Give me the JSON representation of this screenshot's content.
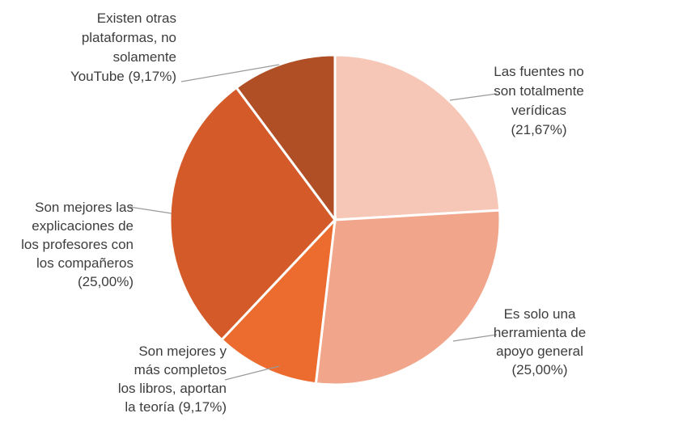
{
  "chart_data": {
    "type": "pie",
    "title": "",
    "start_angle_deg": 0,
    "direction": "clockwise",
    "series": [
      {
        "values": [
          21.67,
          25.0,
          9.17,
          25.0,
          9.17
        ],
        "colors": [
          "#f6c7b6",
          "#f1a58b",
          "#ec6b2e",
          "#d45b29",
          "#b04f25"
        ]
      }
    ],
    "categories": [
      [
        "Las fuentes no",
        "son totalmente",
        "verídicas",
        "(21,67%)"
      ],
      [
        "Es solo una",
        "herramienta de",
        "apoyo general",
        "(25,00%)"
      ],
      [
        "Son mejores y",
        "más completos",
        "los libros, aportan",
        "la teoría (9,17%)"
      ],
      [
        "Son mejores las",
        "explicaciones de",
        "los profesores con",
        "los compañeros",
        "(25,00%)"
      ],
      [
        "Existen otras",
        "plataformas, no",
        "solamente",
        "YouTube (9,17%)"
      ]
    ]
  }
}
